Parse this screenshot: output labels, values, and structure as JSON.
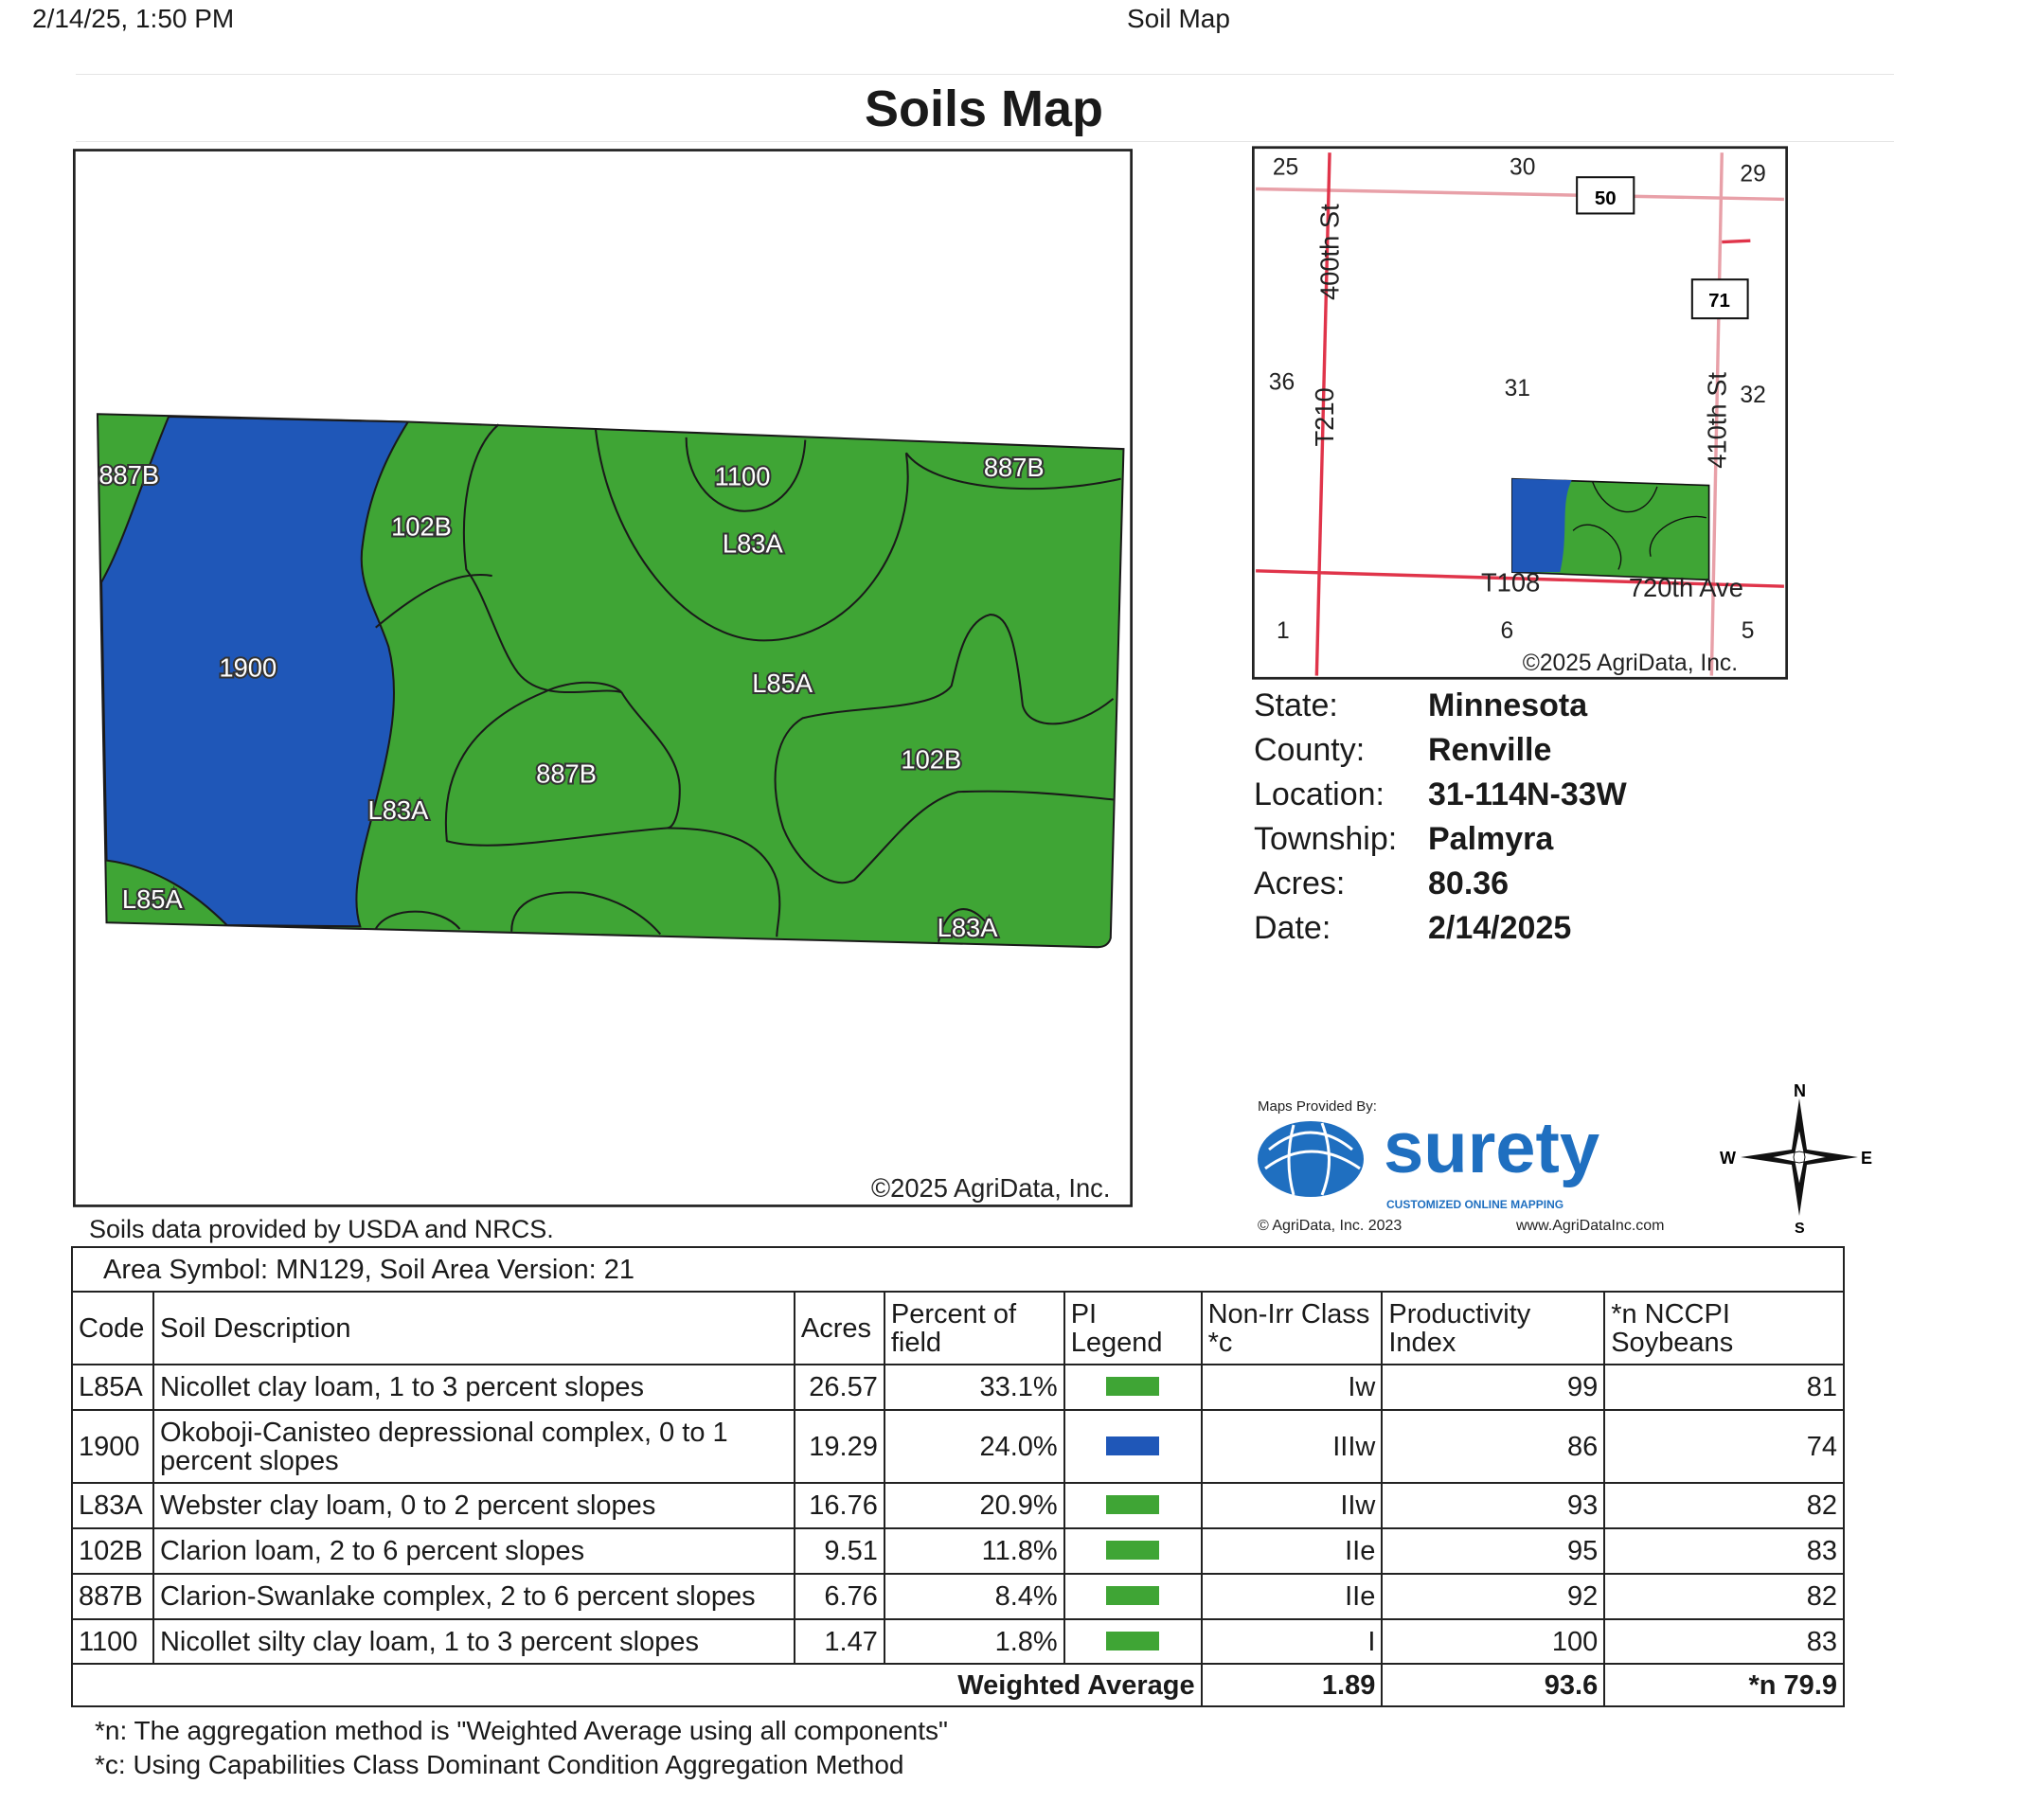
{
  "header": {
    "datetime": "2/14/25, 1:50 PM",
    "page_title": "Soil Map"
  },
  "title": "Soils Map",
  "main_map": {
    "copyright": "©2025 AgriData, Inc.",
    "labels": [
      "887B",
      "102B",
      "1100",
      "L83A",
      "887B",
      "1900",
      "L85A",
      "887B",
      "102B",
      "L83A",
      "L85A",
      "L83A"
    ],
    "colors": {
      "green": "#3fa535",
      "blue": "#1f57b8"
    }
  },
  "locator_map": {
    "sections": [
      "25",
      "30",
      "29",
      "36",
      "31",
      "32",
      "1",
      "6",
      "5"
    ],
    "roads": [
      "400th St",
      "T210",
      "410th St",
      "T108",
      "720th Ave"
    ],
    "shields": [
      "50",
      "71"
    ],
    "copyright": "©2025 AgriData, Inc."
  },
  "info": [
    {
      "label": "State:",
      "value": "Minnesota"
    },
    {
      "label": "County:",
      "value": "Renville"
    },
    {
      "label": "Location:",
      "value": "31-114N-33W"
    },
    {
      "label": "Township:",
      "value": "Palmyra"
    },
    {
      "label": "Acres:",
      "value": "80.36"
    },
    {
      "label": "Date:",
      "value": "2/14/2025"
    }
  ],
  "logo": {
    "provided_by": "Maps Provided By:",
    "brand": "surety",
    "tagline": "CUSTOMIZED ONLINE MAPPING",
    "copyright": "© AgriData, Inc. 2023",
    "url": "www.AgriDataInc.com"
  },
  "compass": {
    "n": "N",
    "s": "S",
    "e": "E",
    "w": "W"
  },
  "source_note": "Soils data provided by USDA and NRCS.",
  "table": {
    "area_symbol": "Area Symbol: MN129, Soil Area Version: 21",
    "headers": [
      "Code",
      "Soil Description",
      "Acres",
      "Percent of field",
      "PI Legend",
      "Non-Irr Class *c",
      "Productivity Index",
      "*n NCCPI Soybeans"
    ],
    "rows": [
      {
        "code": "L85A",
        "desc": "Nicollet clay loam, 1 to 3 percent slopes",
        "acres": "26.57",
        "pct": "33.1%",
        "color": "#3fa535",
        "cls": "Iw",
        "pi": "99",
        "nccpi": "81"
      },
      {
        "code": "1900",
        "desc": "Okoboji-Canisteo depressional complex, 0 to 1 percent slopes",
        "acres": "19.29",
        "pct": "24.0%",
        "color": "#1f57b8",
        "cls": "IIIw",
        "pi": "86",
        "nccpi": "74"
      },
      {
        "code": "L83A",
        "desc": "Webster clay loam, 0 to 2 percent slopes",
        "acres": "16.76",
        "pct": "20.9%",
        "color": "#3fa535",
        "cls": "IIw",
        "pi": "93",
        "nccpi": "82"
      },
      {
        "code": "102B",
        "desc": "Clarion loam, 2 to 6 percent slopes",
        "acres": "9.51",
        "pct": "11.8%",
        "color": "#3fa535",
        "cls": "IIe",
        "pi": "95",
        "nccpi": "83"
      },
      {
        "code": "887B",
        "desc": "Clarion-Swanlake complex, 2 to 6 percent slopes",
        "acres": "6.76",
        "pct": "8.4%",
        "color": "#3fa535",
        "cls": "IIe",
        "pi": "92",
        "nccpi": "82"
      },
      {
        "code": "1100",
        "desc": "Nicollet silty clay loam, 1 to 3 percent slopes",
        "acres": "1.47",
        "pct": "1.8%",
        "color": "#3fa535",
        "cls": "I",
        "pi": "100",
        "nccpi": "83"
      }
    ],
    "weighted": {
      "label": "Weighted Average",
      "cls": "1.89",
      "pi": "93.6",
      "nccpi": "*n 79.9"
    }
  },
  "footnotes": [
    "*n: The aggregation method is \"Weighted Average using all components\"",
    "*c: Using Capabilities Class Dominant Condition Aggregation Method"
  ]
}
